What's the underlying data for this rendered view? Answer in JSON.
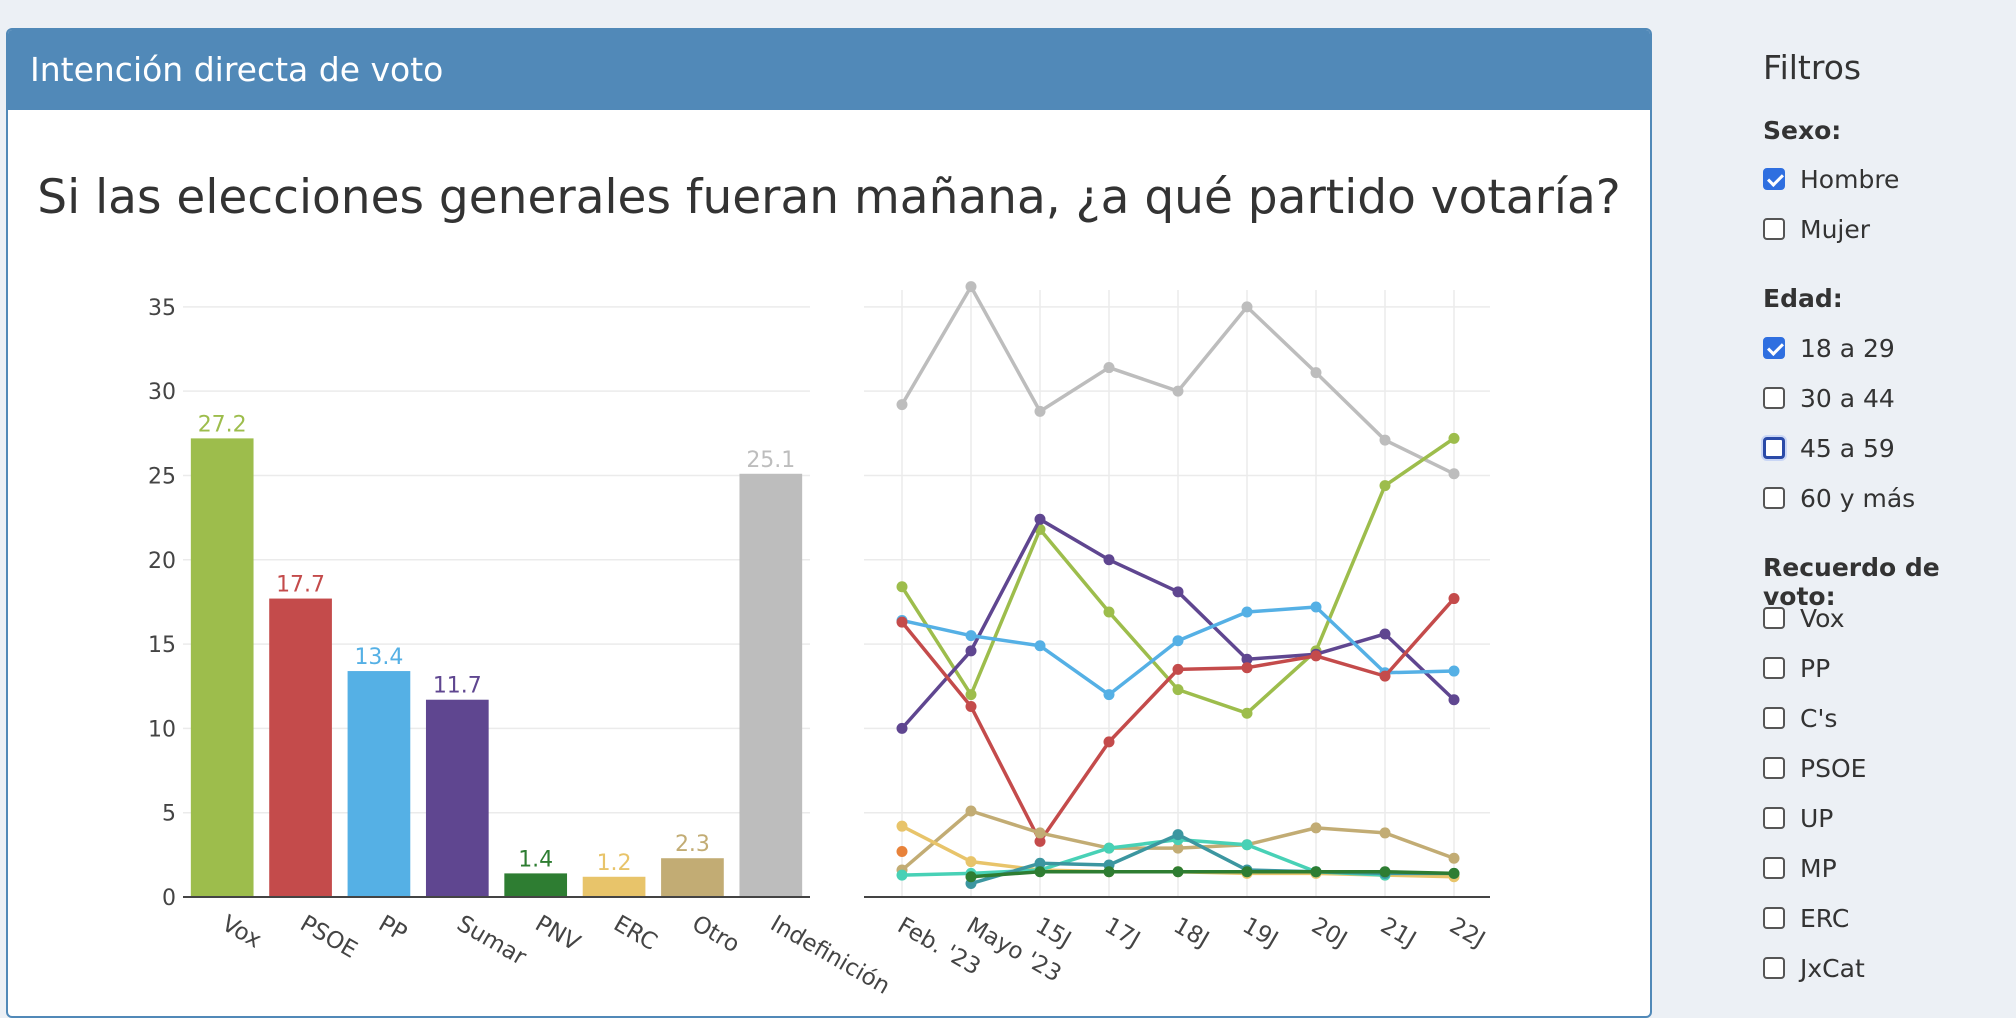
{
  "panel": {
    "title": "Intención directa de voto"
  },
  "chart_data": [
    {
      "type": "bar",
      "title": "Si las elecciones generales fueran mañana, ¿a qué partido votaría?",
      "categories": [
        "Vox",
        "PSOE",
        "PP",
        "Sumar",
        "PNV",
        "ERC",
        "Otro",
        "Indefinición"
      ],
      "values": [
        27.2,
        17.7,
        13.4,
        11.7,
        1.4,
        1.2,
        2.3,
        25.1
      ],
      "value_labels": [
        "27.2",
        "17.7",
        "13.4",
        "11.7",
        "1.4",
        "1.2",
        "2.3",
        "25.1"
      ],
      "colors": [
        "#9dbd4c",
        "#c44b4b",
        "#55b0e5",
        "#5f4690",
        "#2e7d32",
        "#e8c46a",
        "#c2ac74",
        "#bdbdbd"
      ],
      "ylim": [
        0,
        36
      ],
      "yticks": [
        0,
        5,
        10,
        15,
        20,
        25,
        30,
        35
      ],
      "xlabel": "",
      "ylabel": "",
      "grid": true
    },
    {
      "type": "line",
      "categories": [
        "Feb. '23",
        "Mayo '23",
        "15J",
        "17J",
        "18J",
        "19J",
        "20J",
        "21J",
        "22J"
      ],
      "ylim": [
        0,
        36
      ],
      "grid": true,
      "series": [
        {
          "color": "#bdbdbd",
          "values": [
            29.2,
            36.2,
            28.8,
            31.4,
            30.0,
            35.0,
            31.1,
            27.1,
            25.1
          ]
        },
        {
          "color": "#9dbd4c",
          "values": [
            18.4,
            12.0,
            21.8,
            16.9,
            12.3,
            10.9,
            14.6,
            24.4,
            27.2
          ]
        },
        {
          "color": "#5f4690",
          "values": [
            10.0,
            14.6,
            22.4,
            20.0,
            18.1,
            14.1,
            14.4,
            15.6,
            11.7
          ]
        },
        {
          "color": "#55b0e5",
          "values": [
            16.4,
            15.5,
            14.9,
            12.0,
            15.2,
            16.9,
            17.2,
            13.3,
            13.4
          ]
        },
        {
          "color": "#c44b4b",
          "values": [
            16.3,
            11.3,
            3.3,
            9.2,
            13.5,
            13.6,
            14.3,
            13.1,
            17.7
          ]
        },
        {
          "color": "#c2ac74",
          "values": [
            1.6,
            5.1,
            3.8,
            2.9,
            2.9,
            3.1,
            4.1,
            3.8,
            2.3
          ]
        },
        {
          "color": "#e8c46a",
          "values": [
            4.2,
            2.1,
            1.6,
            1.5,
            1.5,
            1.4,
            1.4,
            1.3,
            1.2
          ]
        },
        {
          "color": "#48d1b6",
          "values": [
            1.3,
            1.4,
            1.6,
            2.9,
            3.4,
            3.1,
            1.5,
            1.3,
            null
          ]
        },
        {
          "color": "#3c96a0",
          "values": [
            null,
            0.8,
            2.0,
            1.9,
            3.7,
            1.6,
            1.5,
            1.4,
            1.4
          ]
        },
        {
          "color": "#2e7d32",
          "values": [
            null,
            1.2,
            1.5,
            1.5,
            1.5,
            1.5,
            1.5,
            1.5,
            1.4
          ]
        },
        {
          "color": "#e8823a",
          "values": [
            2.7,
            null,
            null,
            null,
            null,
            null,
            null,
            null,
            null
          ]
        }
      ]
    }
  ],
  "sidebar": {
    "title": "Filtros",
    "groups": [
      {
        "label": "Sexo:",
        "options": [
          {
            "label": "Hombre",
            "checked": true
          },
          {
            "label": "Mujer",
            "checked": false
          }
        ]
      },
      {
        "label": "Edad:",
        "options": [
          {
            "label": "18 a 29",
            "checked": true
          },
          {
            "label": "30 a 44",
            "checked": false
          },
          {
            "label": "45 a 59",
            "checked": false,
            "focused": true
          },
          {
            "label": "60 y más",
            "checked": false
          }
        ]
      },
      {
        "label": "Recuerdo de voto:",
        "options": [
          {
            "label": "Vox",
            "checked": false
          },
          {
            "label": "PP",
            "checked": false
          },
          {
            "label": "C's",
            "checked": false
          },
          {
            "label": "PSOE",
            "checked": false
          },
          {
            "label": "UP",
            "checked": false
          },
          {
            "label": "MP",
            "checked": false
          },
          {
            "label": "ERC",
            "checked": false
          },
          {
            "label": "JxCat",
            "checked": false
          }
        ]
      }
    ]
  }
}
